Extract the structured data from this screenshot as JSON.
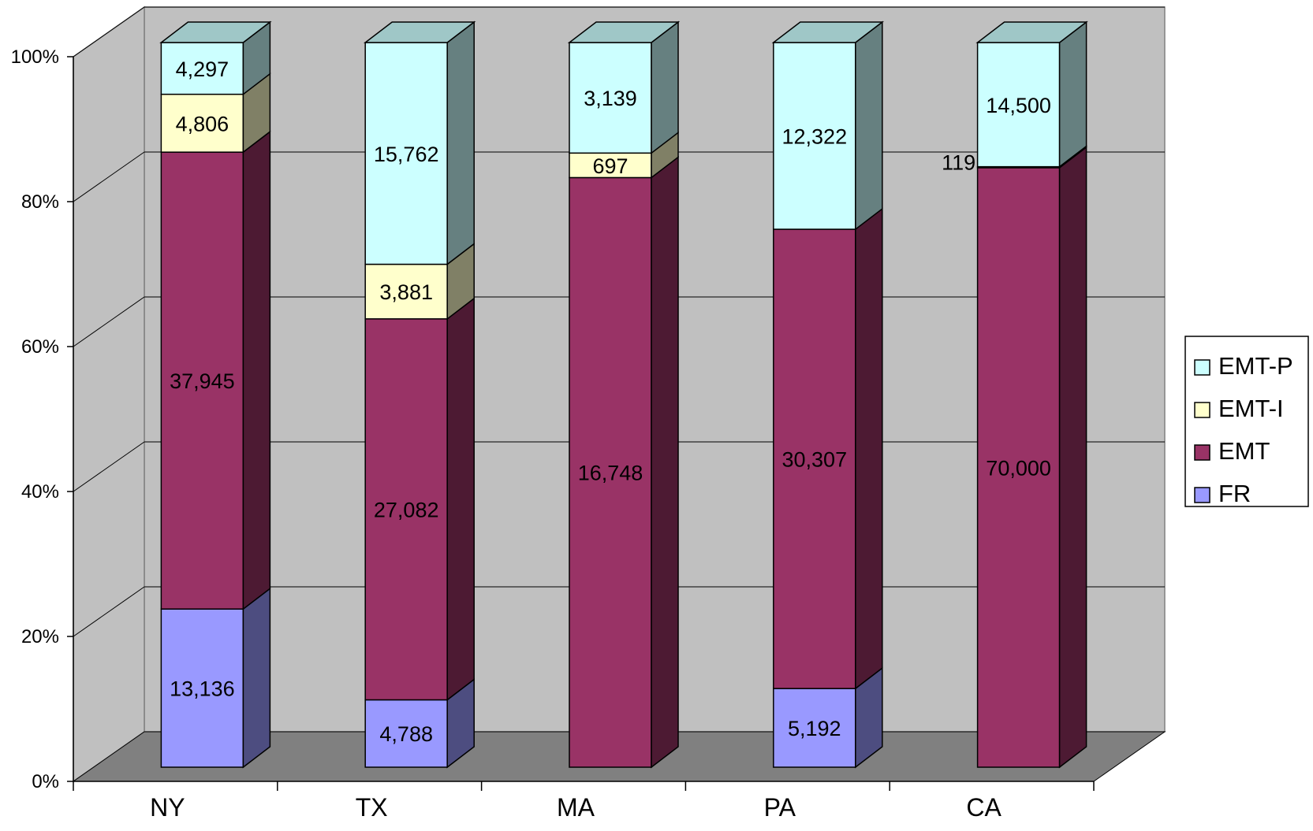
{
  "chart_data": {
    "type": "bar",
    "stacked": "100%",
    "three_d": true,
    "categories": [
      "NY",
      "TX",
      "MA",
      "PA",
      "CA"
    ],
    "series": [
      {
        "name": "FR",
        "values": [
          13136,
          4788,
          0,
          5192,
          0
        ],
        "labels": [
          "13,136",
          "4,788",
          "",
          "5,192",
          ""
        ],
        "color": "#9999FF"
      },
      {
        "name": "EMT",
        "values": [
          37945,
          27082,
          16748,
          30307,
          70000
        ],
        "labels": [
          "37,945",
          "27,082",
          "16,748",
          "30,307",
          "70,000"
        ],
        "color": "#993366"
      },
      {
        "name": "EMT-I",
        "values": [
          4806,
          3881,
          697,
          0,
          119
        ],
        "labels": [
          "4,806",
          "3,881",
          "697",
          "",
          "119"
        ],
        "color": "#FFFFCC"
      },
      {
        "name": "EMT-P",
        "values": [
          4297,
          15762,
          3139,
          12322,
          14500
        ],
        "labels": [
          "4,297",
          "15,762",
          "3,139",
          "12,322",
          "14,500"
        ],
        "color": "#CCFFFF"
      }
    ],
    "yticks": [
      "0%",
      "20%",
      "40%",
      "60%",
      "80%",
      "100%"
    ],
    "ylim": [
      0,
      100
    ],
    "grid": true,
    "legend_position": "right",
    "legend_order": [
      "EMT-P",
      "EMT-I",
      "EMT",
      "FR"
    ],
    "wall_color": "#C0C0C0",
    "floor_color": "#808080"
  }
}
